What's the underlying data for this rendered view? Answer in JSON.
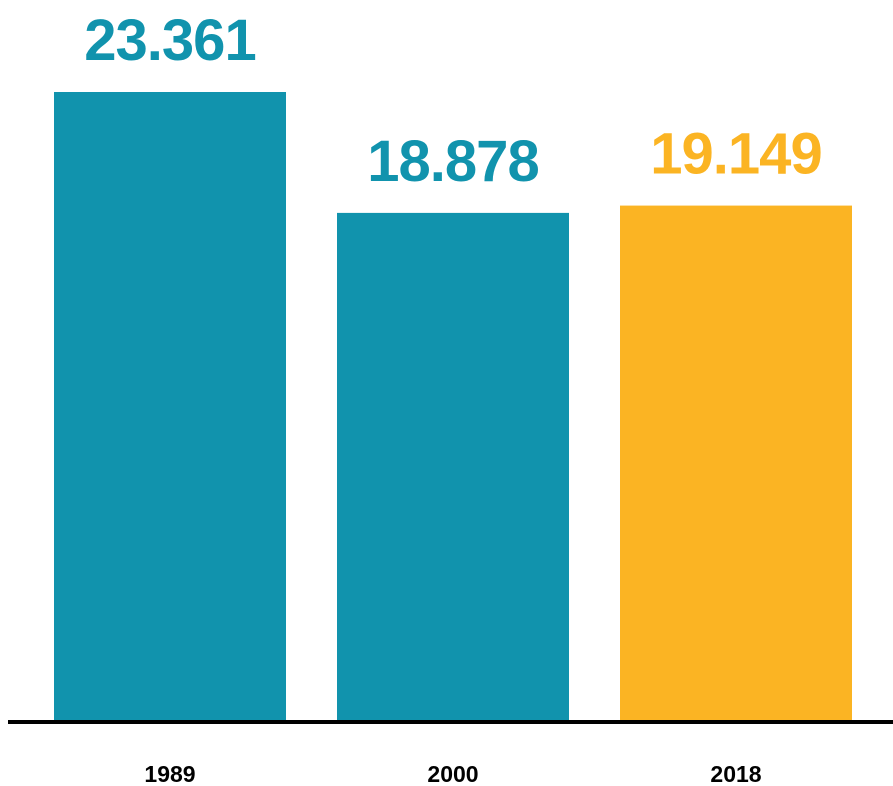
{
  "chart_data": {
    "type": "bar",
    "title": "",
    "xlabel": "",
    "ylabel": "",
    "categories": [
      "1989",
      "2000",
      "2018"
    ],
    "values": [
      23361,
      18878,
      19149
    ],
    "value_labels": [
      "23.361",
      "18.878",
      "19.149"
    ],
    "ylim": [
      0,
      23361
    ],
    "grid": false,
    "bar_colors": [
      "#1193ad",
      "#1193ad",
      "#fbb423"
    ],
    "axis_color": "#000000"
  }
}
